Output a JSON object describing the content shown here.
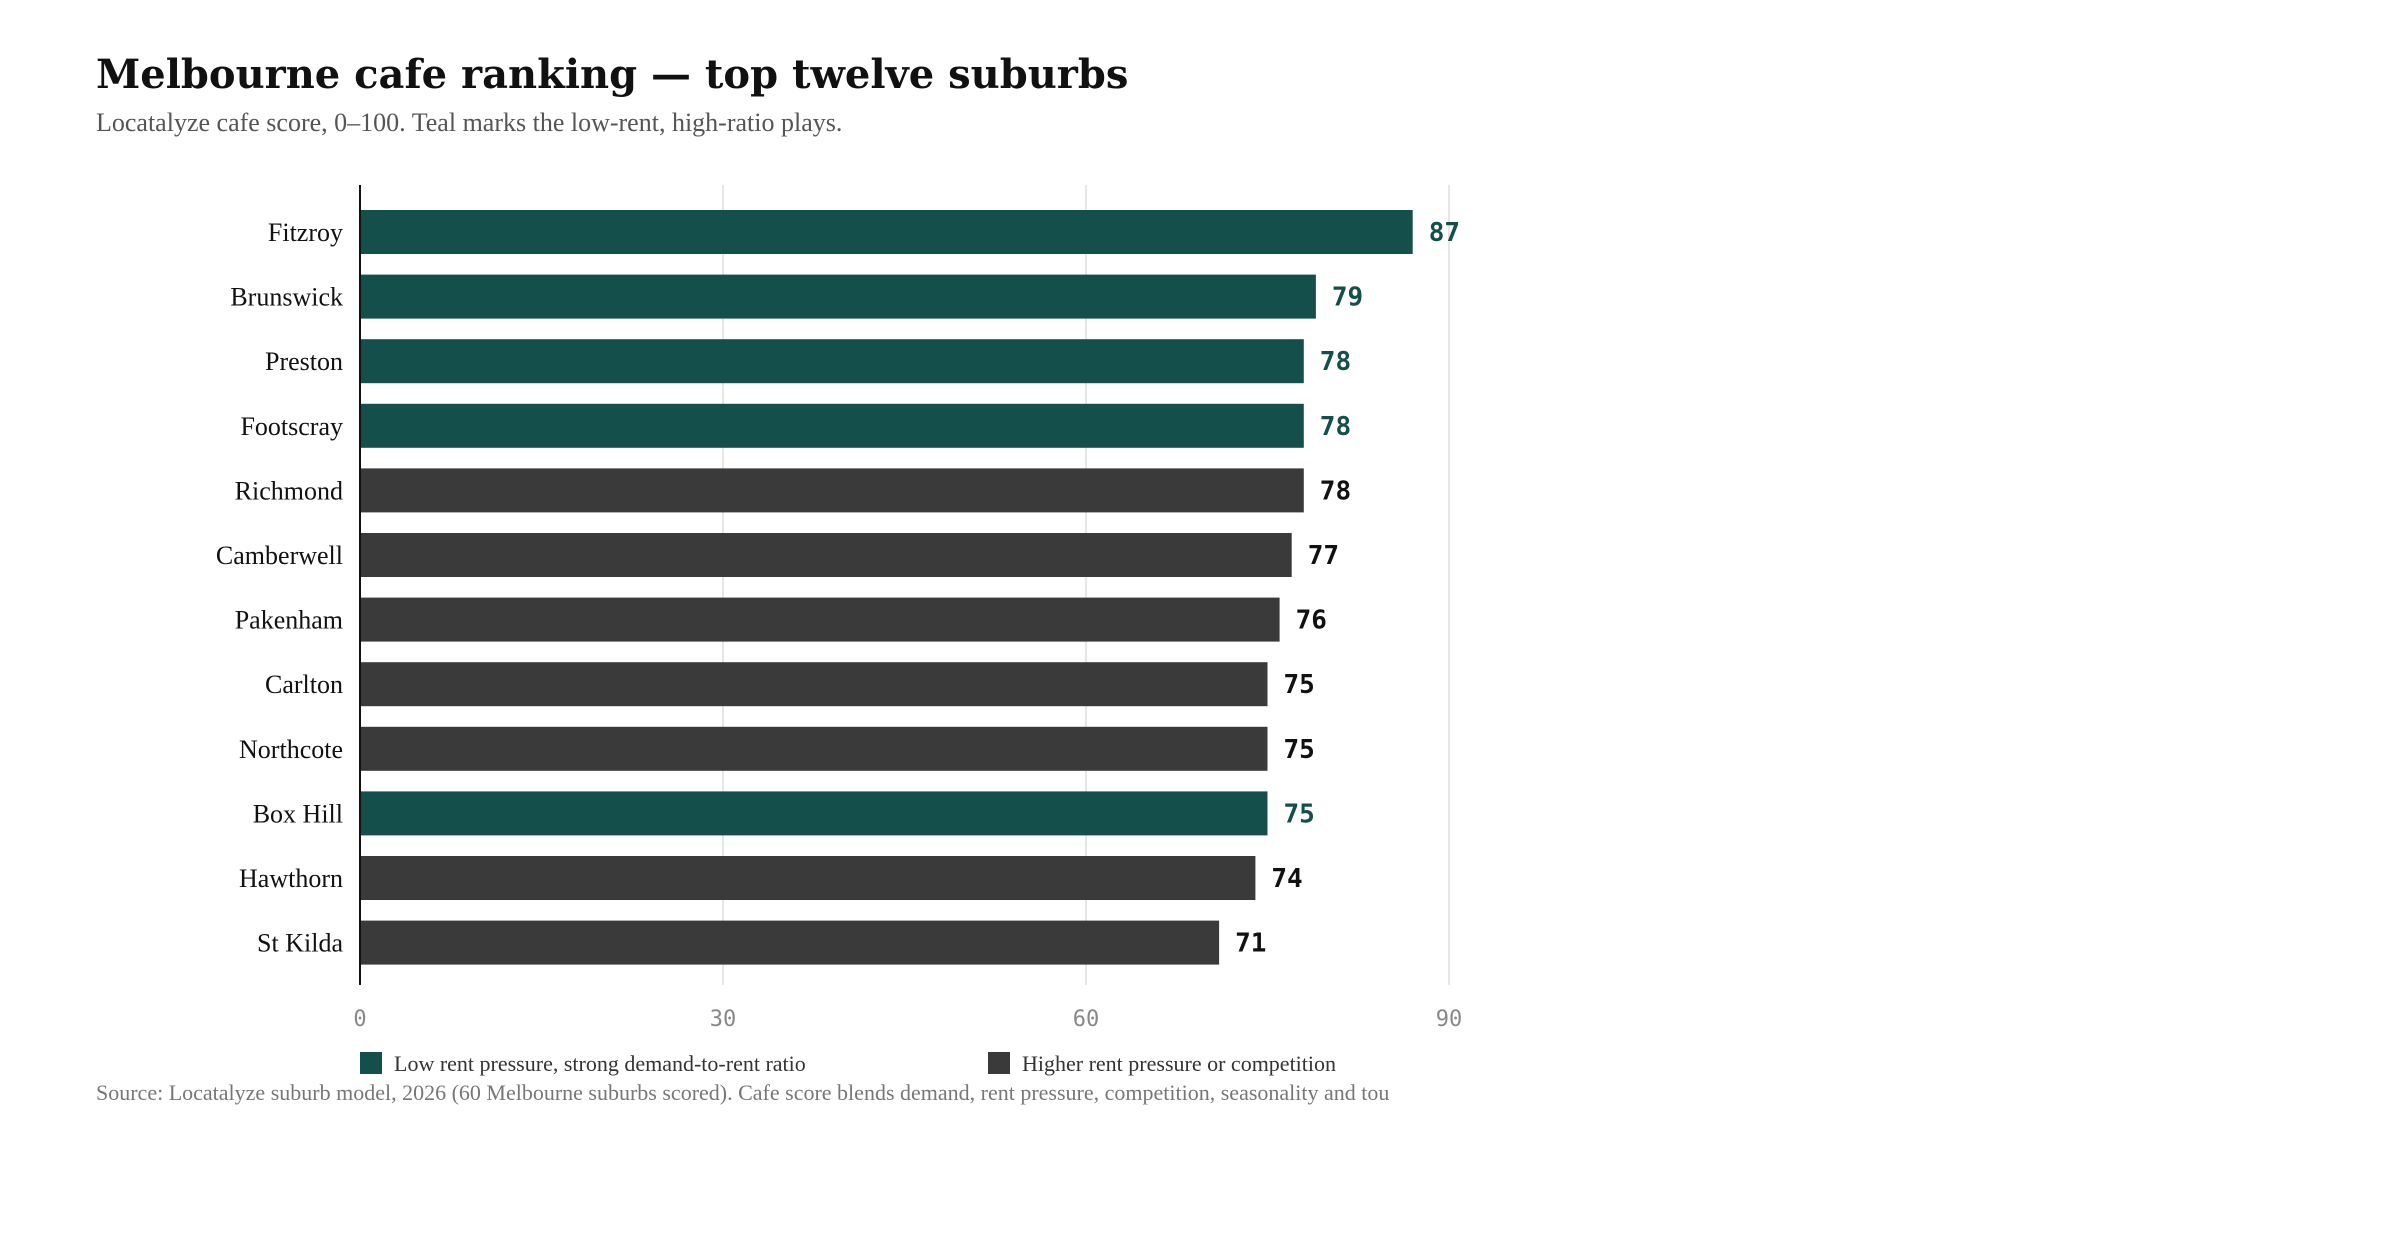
{
  "header": {
    "title": "Melbourne cafe ranking — top twelve suburbs",
    "subtitle": "Locatalyze cafe score, 0–100. Teal marks the low-rent, high-ratio plays."
  },
  "footer": {
    "source": "Source: Locatalyze suburb model, 2026 (60 Melbourne suburbs scored). Cafe score blends demand, rent pressure, competition, seasonality and tou"
  },
  "colors": {
    "teal": "#154f4c",
    "dark": "#3a3a3a",
    "grid": "#e6e6e6",
    "axis": "#111111",
    "tick_text": "#888888"
  },
  "chart_data": {
    "type": "bar",
    "orientation": "horizontal",
    "categories": [
      "Fitzroy",
      "Brunswick",
      "Preston",
      "Footscray",
      "Richmond",
      "Camberwell",
      "Pakenham",
      "Carlton",
      "Northcote",
      "Box Hill",
      "Hawthorn",
      "St Kilda"
    ],
    "values": [
      87,
      79,
      78,
      78,
      78,
      77,
      76,
      75,
      75,
      75,
      74,
      71
    ],
    "groups": [
      "low",
      "low",
      "low",
      "low",
      "high",
      "high",
      "high",
      "high",
      "high",
      "low",
      "high",
      "high"
    ],
    "xlim": [
      0,
      90
    ],
    "xticks": [
      "0",
      "30",
      "60",
      "90"
    ],
    "grid": true,
    "legend_position": "bottom",
    "legend": [
      {
        "key": "low",
        "label": "Low rent pressure, strong demand-to-rent ratio",
        "color": "#154f4c"
      },
      {
        "key": "high",
        "label": "Higher rent pressure or competition",
        "color": "#3a3a3a"
      }
    ]
  }
}
